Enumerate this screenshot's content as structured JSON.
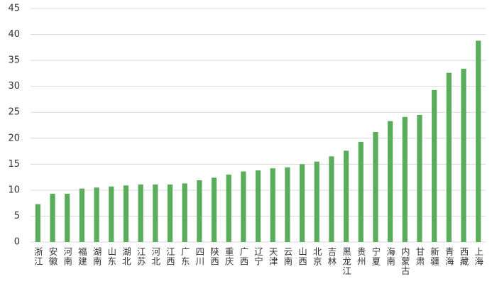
{
  "chart_data": {
    "type": "bar",
    "categories": [
      "浙江",
      "安徽",
      "河南",
      "福建",
      "湖南",
      "山东",
      "湖北",
      "江苏",
      "河北",
      "江西",
      "广东",
      "四川",
      "陕西",
      "重庆",
      "广西",
      "辽宁",
      "天津",
      "云南",
      "山西",
      "北京",
      "吉林",
      "黑龙江",
      "贵州",
      "宁夏",
      "海南",
      "内蒙古",
      "甘肃",
      "新疆",
      "青海",
      "西藏",
      "上海"
    ],
    "values": [
      7.3,
      9.3,
      9.3,
      10.3,
      10.5,
      10.7,
      10.9,
      11.1,
      11.1,
      11.1,
      11.3,
      11.9,
      12.4,
      13.0,
      13.6,
      13.8,
      14.2,
      14.4,
      15.0,
      15.5,
      16.5,
      17.6,
      19.3,
      21.2,
      23.3,
      24.1,
      24.5,
      29.3,
      32.6,
      33.4,
      38.8
    ],
    "color": "#5aad5a",
    "ylim": [
      0,
      45
    ],
    "yticks": [
      0,
      5,
      10,
      15,
      20,
      25,
      30,
      35,
      40,
      45
    ],
    "grid": true
  }
}
